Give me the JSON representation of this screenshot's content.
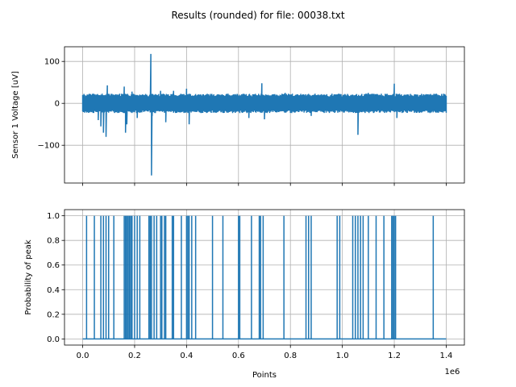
{
  "figure": {
    "title": "Results (rounded) for file: 00038.txt",
    "line_color": "#1f77b4"
  },
  "chart_data": [
    {
      "type": "line",
      "title": "",
      "xlabel": "",
      "ylabel": "Sensor 1 Voltage [uV]",
      "xlim": [
        -70000,
        1470000
      ],
      "ylim": [
        -190,
        135
      ],
      "xticks": [
        0,
        200000,
        400000,
        600000,
        800000,
        1000000,
        1200000,
        1400000
      ],
      "yticks": [
        -100,
        0,
        100
      ],
      "ytick_labels": [
        "−100",
        "0",
        "100"
      ],
      "grid": true,
      "noise_band": {
        "x_range": [
          0,
          1400000
        ],
        "typical_amplitude": 22
      },
      "spikes": [
        {
          "x": 10000,
          "y": 15
        },
        {
          "x": 60000,
          "y": -40
        },
        {
          "x": 70000,
          "y": -55
        },
        {
          "x": 80000,
          "y": -70
        },
        {
          "x": 90000,
          "y": -80
        },
        {
          "x": 95000,
          "y": 43
        },
        {
          "x": 160000,
          "y": 40
        },
        {
          "x": 165000,
          "y": -70
        },
        {
          "x": 170000,
          "y": -50
        },
        {
          "x": 190000,
          "y": 28
        },
        {
          "x": 210000,
          "y": -35
        },
        {
          "x": 255000,
          "y": -15
        },
        {
          "x": 262000,
          "y": 118
        },
        {
          "x": 265000,
          "y": -172
        },
        {
          "x": 268000,
          "y": -30
        },
        {
          "x": 300000,
          "y": 30
        },
        {
          "x": 320000,
          "y": -45
        },
        {
          "x": 350000,
          "y": 30
        },
        {
          "x": 400000,
          "y": 35
        },
        {
          "x": 410000,
          "y": -50
        },
        {
          "x": 640000,
          "y": -35
        },
        {
          "x": 690000,
          "y": 48
        },
        {
          "x": 700000,
          "y": -38
        },
        {
          "x": 780000,
          "y": 25
        },
        {
          "x": 880000,
          "y": -30
        },
        {
          "x": 1060000,
          "y": -75
        },
        {
          "x": 1100000,
          "y": 25
        },
        {
          "x": 1200000,
          "y": 47
        },
        {
          "x": 1210000,
          "y": -35
        }
      ]
    },
    {
      "type": "line",
      "title": "",
      "xlabel": "Points",
      "ylabel": "Probability of peak",
      "x_offset_label": "1e6",
      "xlim": [
        -70000,
        1470000
      ],
      "ylim": [
        -0.05,
        1.05
      ],
      "xticks": [
        0,
        200000,
        400000,
        600000,
        800000,
        1000000,
        1200000,
        1400000
      ],
      "xtick_labels": [
        "0.0",
        "0.2",
        "0.4",
        "0.6",
        "0.8",
        "1.0",
        "1.2",
        "1.4"
      ],
      "yticks": [
        0,
        0.2,
        0.4,
        0.6,
        0.8,
        1.0
      ],
      "ytick_labels": [
        "0.0",
        "0.2",
        "0.4",
        "0.6",
        "0.8",
        "1.0"
      ],
      "grid": true,
      "x_range": [
        0,
        1400000
      ],
      "peak_positions": [
        15000,
        45000,
        70000,
        80000,
        90000,
        100000,
        120000,
        160000,
        165000,
        170000,
        175000,
        180000,
        185000,
        190000,
        200000,
        210000,
        220000,
        255000,
        260000,
        265000,
        275000,
        285000,
        300000,
        305000,
        315000,
        320000,
        345000,
        350000,
        380000,
        400000,
        405000,
        410000,
        420000,
        435000,
        500000,
        540000,
        600000,
        605000,
        650000,
        680000,
        685000,
        695000,
        775000,
        860000,
        870000,
        880000,
        980000,
        990000,
        1040000,
        1050000,
        1060000,
        1070000,
        1080000,
        1100000,
        1130000,
        1160000,
        1190000,
        1195000,
        1200000,
        1205000,
        1350000
      ]
    }
  ]
}
